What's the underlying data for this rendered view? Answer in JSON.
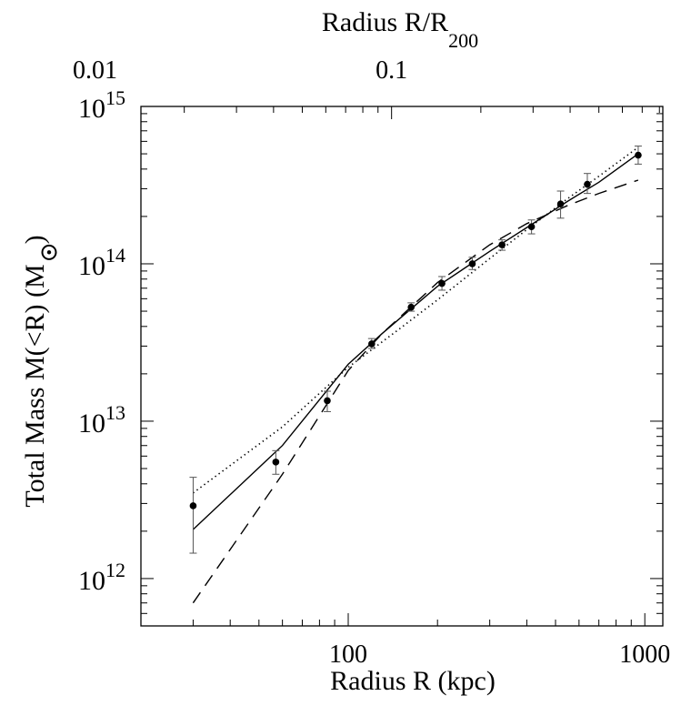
{
  "chart_data": {
    "type": "scatter",
    "title": "",
    "xlabel": "Radius R (kpc)",
    "ylabel_main": "Total Mass M(<R) (M",
    "ylabel_close": ")",
    "top_xlabel_main": "Radius R/R",
    "top_xlabel_sub": "200",
    "x_scale": "log",
    "y_scale": "log",
    "xlim": [
      20,
      1150
    ],
    "ylim": [
      500000000000.0,
      1000000000000000.0
    ],
    "x_ticks": [
      100,
      1000
    ],
    "x_tick_labels": [
      "100",
      "1000"
    ],
    "y_ticks": [
      1000000000000.0,
      10000000000000.0,
      100000000000000.0,
      1000000000000000.0
    ],
    "y_tick_labels": [
      {
        "base": "10",
        "exp": "12"
      },
      {
        "base": "10",
        "exp": "13"
      },
      {
        "base": "10",
        "exp": "14"
      },
      {
        "base": "10",
        "exp": "15"
      }
    ],
    "top_x_ticks": [
      0.01,
      0.1
    ],
    "top_x_tick_labels": [
      "0.01",
      "0.1"
    ],
    "top_x_at_primary": [
      {
        "value": 0.01,
        "x": 14
      },
      {
        "value": 0.1,
        "x": 140
      }
    ],
    "grid": false,
    "legend": "none",
    "points": [
      {
        "x": 30,
        "y": 2900000000000.0,
        "ylo": 1450000000000.0,
        "yhi": 4400000000000.0
      },
      {
        "x": 57,
        "y": 5500000000000.0,
        "ylo": 4600000000000.0,
        "yhi": 6500000000000.0
      },
      {
        "x": 85,
        "y": 13500000000000.0,
        "ylo": 11500000000000.0,
        "yhi": 15500000000000.0
      },
      {
        "x": 120,
        "y": 31000000000000.0,
        "ylo": 29000000000000.0,
        "yhi": 33500000000000.0
      },
      {
        "x": 163,
        "y": 53000000000000.0,
        "ylo": 50000000000000.0,
        "yhi": 56500000000000.0
      },
      {
        "x": 207,
        "y": 75000000000000.0,
        "ylo": 68000000000000.0,
        "yhi": 83000000000000.0
      },
      {
        "x": 262,
        "y": 100000000000000.0,
        "ylo": 92000000000000.0,
        "yhi": 110000000000000.0
      },
      {
        "x": 330,
        "y": 132000000000000.0,
        "ylo": 122000000000000.0,
        "yhi": 142000000000000.0
      },
      {
        "x": 415,
        "y": 172000000000000.0,
        "ylo": 155000000000000.0,
        "yhi": 190000000000000.0
      },
      {
        "x": 520,
        "y": 240000000000000.0,
        "ylo": 195000000000000.0,
        "yhi": 290000000000000.0
      },
      {
        "x": 640,
        "y": 320000000000000.0,
        "ylo": 280000000000000.0,
        "yhi": 375000000000000.0
      },
      {
        "x": 950,
        "y": 490000000000000.0,
        "ylo": 430000000000000.0,
        "yhi": 560000000000000.0
      }
    ],
    "series": [
      {
        "style": "solid",
        "x": [
          30,
          60,
          100,
          130,
          200,
          300,
          400,
          550,
          700,
          950
        ],
        "y": [
          2050000000000.0,
          7000000000000.0,
          23000000000000.0,
          36000000000000.0,
          72000000000000.0,
          120000000000000.0,
          170000000000000.0,
          250000000000000.0,
          330000000000000.0,
          500000000000000.0
        ]
      },
      {
        "style": "dotted",
        "x": [
          30,
          60,
          100,
          150,
          200,
          300,
          400,
          550,
          700,
          950
        ],
        "y": [
          3500000000000.0,
          9200000000000.0,
          22000000000000.0,
          39000000000000.0,
          59000000000000.0,
          108000000000000.0,
          165000000000000.0,
          260000000000000.0,
          360000000000000.0,
          550000000000000.0
        ]
      },
      {
        "style": "dashed",
        "x": [
          30,
          60,
          100,
          130,
          200,
          300,
          400,
          550,
          700,
          950
        ],
        "y": [
          700000000000.0,
          4600000000000.0,
          21000000000000.0,
          36000000000000.0,
          76000000000000.0,
          132000000000000.0,
          180000000000000.0,
          235000000000000.0,
          280000000000000.0,
          340000000000000.0
        ]
      }
    ]
  }
}
